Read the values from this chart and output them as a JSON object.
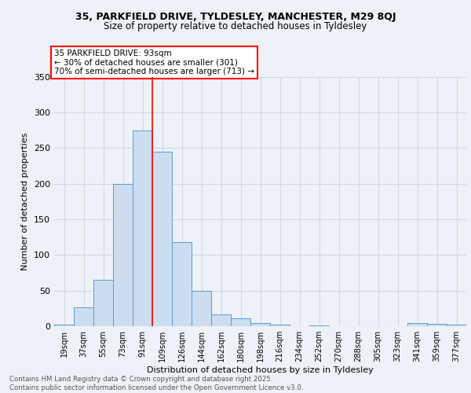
{
  "title1": "35, PARKFIELD DRIVE, TYLDESLEY, MANCHESTER, M29 8QJ",
  "title2": "Size of property relative to detached houses in Tyldesley",
  "xlabel": "Distribution of detached houses by size in Tyldesley",
  "ylabel": "Number of detached properties",
  "bin_labels": [
    "19sqm",
    "37sqm",
    "55sqm",
    "73sqm",
    "91sqm",
    "109sqm",
    "126sqm",
    "144sqm",
    "162sqm",
    "180sqm",
    "198sqm",
    "216sqm",
    "234sqm",
    "252sqm",
    "270sqm",
    "288sqm",
    "305sqm",
    "323sqm",
    "341sqm",
    "359sqm",
    "377sqm"
  ],
  "bar_values": [
    2,
    27,
    65,
    200,
    275,
    245,
    118,
    50,
    16,
    11,
    4,
    2,
    0,
    1,
    0,
    0,
    0,
    0,
    4,
    3,
    2
  ],
  "bar_color": "#ccddf0",
  "bar_edge_color": "#5b9bd5",
  "grid_color": "#d0d8e8",
  "background_color": "#eef2f8",
  "red_line_bin": 4,
  "annotation_text": "35 PARKFIELD DRIVE: 93sqm\n← 30% of detached houses are smaller (301)\n70% of semi-detached houses are larger (713) →",
  "annotation_box_color": "white",
  "annotation_box_edge": "red",
  "footer": "Contains HM Land Registry data © Crown copyright and database right 2025.\nContains public sector information licensed under the Open Government Licence v3.0.",
  "ylim": [
    0,
    350
  ],
  "yticks": [
    0,
    50,
    100,
    150,
    200,
    250,
    300,
    350
  ]
}
